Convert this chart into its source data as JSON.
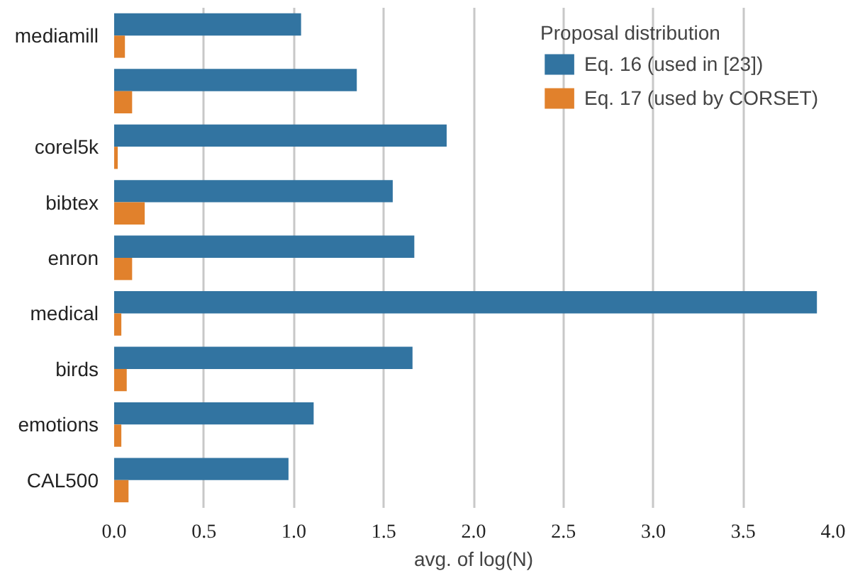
{
  "chart_data": {
    "type": "bar",
    "orientation": "horizontal",
    "xlabel": "avg. of log(N)",
    "legend_title": "Proposal distribution",
    "categories": [
      "mediamill",
      null,
      "corel5k",
      "bibtex",
      "enron",
      "medical",
      "birds",
      "emotions",
      "CAL500"
    ],
    "series": [
      {
        "name": "Eq. 16 (used in [23])",
        "color": "#3274a1",
        "values": [
          1.04,
          1.35,
          1.85,
          1.55,
          1.67,
          3.91,
          1.66,
          1.11,
          0.97
        ]
      },
      {
        "name": "Eq. 17 (used by CORSET)",
        "color": "#e1812c",
        "values": [
          0.06,
          0.1,
          0.02,
          0.17,
          0.1,
          0.04,
          0.07,
          0.04,
          0.08
        ]
      }
    ],
    "xlim": [
      0,
      4.0
    ],
    "xticks": [
      {
        "value": 0,
        "label": "0.0"
      },
      0.5,
      {
        "value": 1,
        "label": "1.0"
      },
      1.5,
      {
        "value": 2,
        "label": "2.0"
      },
      2.5,
      {
        "value": 3,
        "label": "3.0"
      },
      3.5,
      {
        "value": 4,
        "label": "4.0"
      }
    ],
    "grid": "x",
    "legend": "top right"
  }
}
